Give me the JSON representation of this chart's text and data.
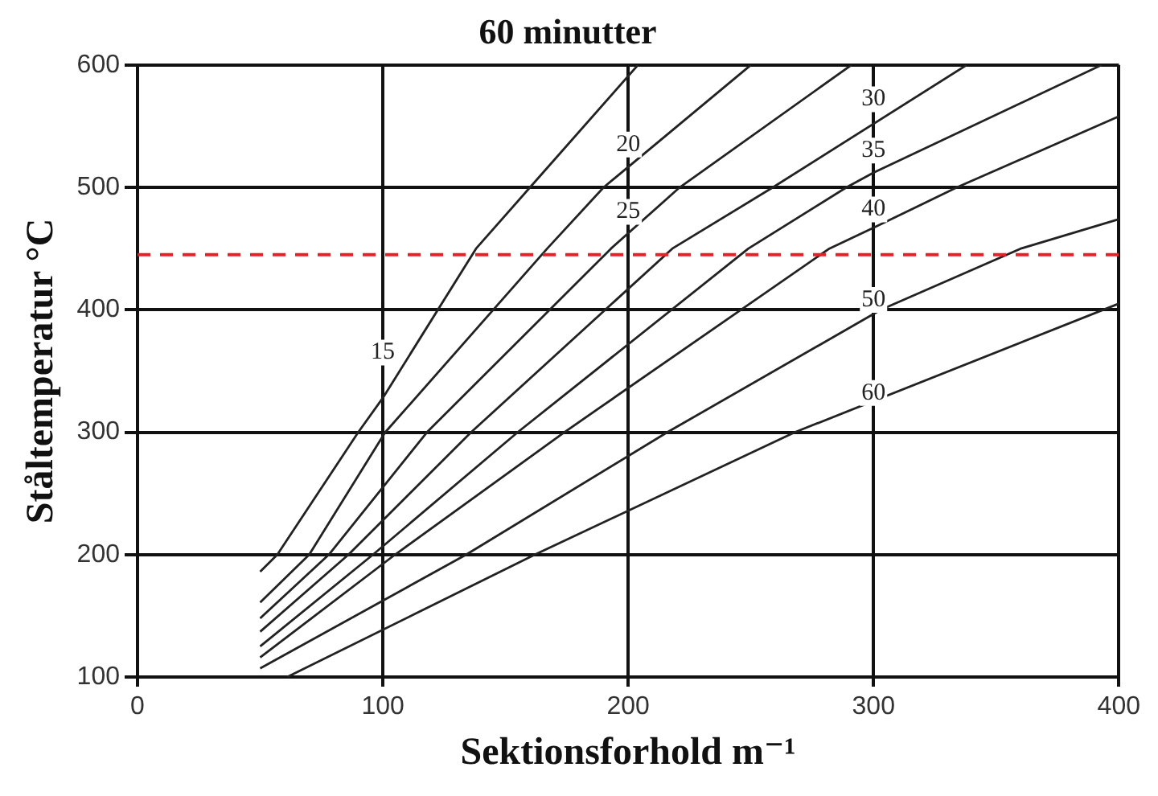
{
  "chart_data": {
    "type": "line",
    "title": "60 minutter",
    "xlabel": "Sektionsforhold m⁻¹",
    "ylabel": "Ståltemperatur °C",
    "xlim": [
      0,
      400
    ],
    "xticks": [
      0,
      100,
      200,
      300,
      400
    ],
    "ylim": [
      100,
      600
    ],
    "yticks": [
      100,
      200,
      300,
      400,
      500,
      600
    ],
    "grid": true,
    "legend": false,
    "marker": "none",
    "line_style": "solid",
    "series": [
      {
        "color": "#222222",
        "x": [
          50,
          57,
          90,
          100,
          138,
          160,
          204
        ],
        "values": [
          186,
          200,
          300,
          328,
          450,
          500,
          600
        ]
      },
      {
        "color": "#222222",
        "x": [
          50,
          70,
          101,
          167,
          190,
          250
        ],
        "values": [
          161,
          200,
          300,
          450,
          500,
          600
        ]
      },
      {
        "color": "#222222",
        "x": [
          50,
          78,
          118,
          193,
          221,
          291
        ],
        "values": [
          148,
          200,
          300,
          450,
          500,
          600
        ]
      },
      {
        "color": "#222222",
        "x": [
          50,
          86,
          136,
          218,
          259,
          338
        ],
        "values": [
          137,
          200,
          300,
          450,
          500,
          600
        ]
      },
      {
        "color": "#222222",
        "x": [
          50,
          96,
          155,
          249,
          289,
          300,
          393
        ],
        "values": [
          125,
          200,
          300,
          450,
          500,
          512,
          600
        ]
      },
      {
        "color": "#222222",
        "x": [
          50,
          105,
          174,
          282,
          300,
          334,
          400
        ],
        "values": [
          116,
          200,
          300,
          450,
          467,
          500,
          558
        ]
      },
      {
        "color": "#222222",
        "x": [
          50,
          134,
          216,
          303,
          360,
          400
        ],
        "values": [
          107,
          200,
          300,
          400,
          450,
          474
        ]
      },
      {
        "color": "#222222",
        "x": [
          61,
          162,
          268,
          400
        ],
        "values": [
          100,
          200,
          300,
          405
        ]
      }
    ],
    "ref_lines": [
      {
        "axis": "y",
        "value": 445,
        "color": "#e8202a",
        "line_style": "dashed"
      }
    ],
    "annotations": [
      {
        "text": "15",
        "x": 100,
        "y": 365
      },
      {
        "text": "20",
        "x": 200,
        "y": 535
      },
      {
        "text": "25",
        "x": 200,
        "y": 480
      },
      {
        "text": "30",
        "x": 300,
        "y": 572
      },
      {
        "text": "35",
        "x": 300,
        "y": 530
      },
      {
        "text": "40",
        "x": 300,
        "y": 482
      },
      {
        "text": "50",
        "x": 300,
        "y": 408
      },
      {
        "text": "60",
        "x": 300,
        "y": 332
      }
    ]
  }
}
